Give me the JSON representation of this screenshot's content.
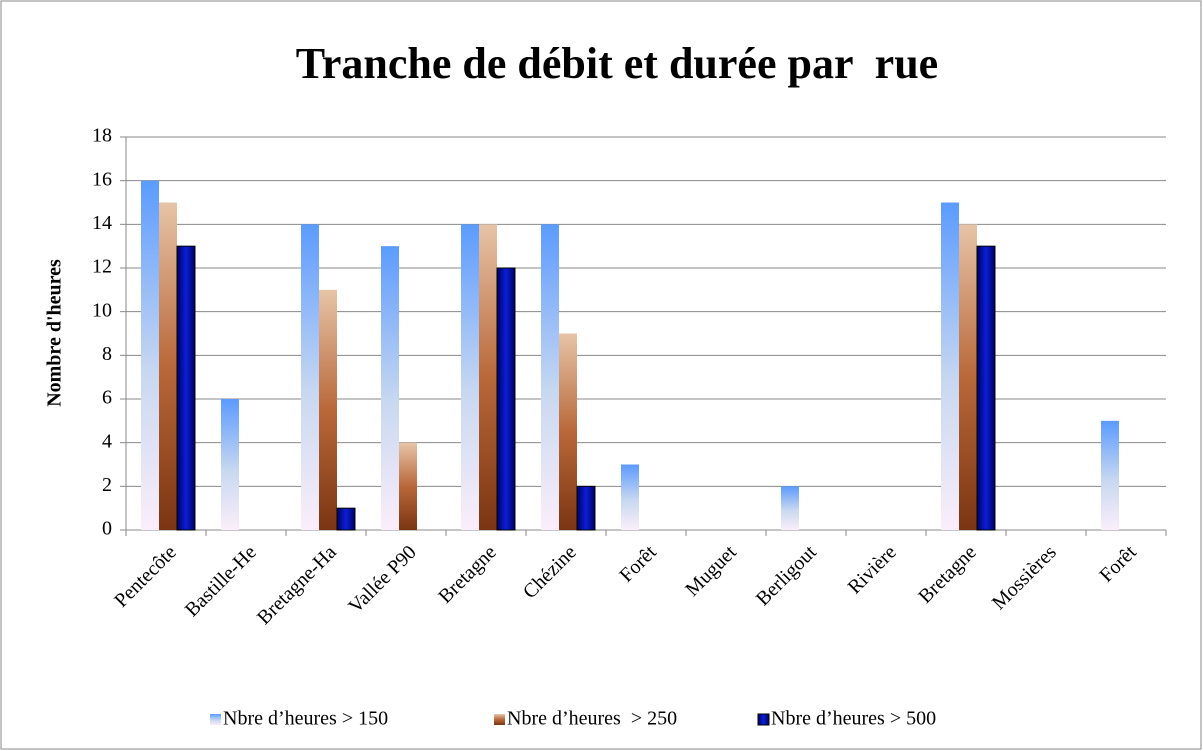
{
  "chart_data": {
    "type": "bar",
    "title": "Tranche de débit et durée par  rue",
    "y_label": "Nombre d'heures",
    "categories": [
      "Pentecôte",
      "Bastille-He",
      "Bretagne-Ha",
      "Vallée P90",
      "Bretagne",
      "Chézine",
      "Forêt",
      "Muguet",
      "Berligout",
      "Rivière",
      "Bretagne",
      "Mossières",
      "Forêt"
    ],
    "series": [
      {
        "name": "Nbre d’heures > 150",
        "color": "#5b9bff",
        "values": [
          16,
          6,
          14,
          13,
          14,
          14,
          3,
          0,
          2,
          0,
          15,
          0,
          5
        ]
      },
      {
        "name": "Nbre d’heures  > 250",
        "color": "#7a3512",
        "values": [
          15,
          0,
          11,
          4,
          14,
          9,
          0,
          0,
          0,
          0,
          14,
          0,
          0
        ]
      },
      {
        "name": "Nbre d’heures > 500",
        "color": "#0a1fd6",
        "values": [
          13,
          0,
          1,
          0,
          12,
          2,
          0,
          0,
          0,
          0,
          13,
          0,
          0
        ]
      }
    ],
    "ylim": [
      0,
      18
    ],
    "yticks": [
      0,
      2,
      4,
      6,
      8,
      10,
      12,
      14,
      16,
      18
    ],
    "grid": true,
    "legend": "bottom"
  }
}
